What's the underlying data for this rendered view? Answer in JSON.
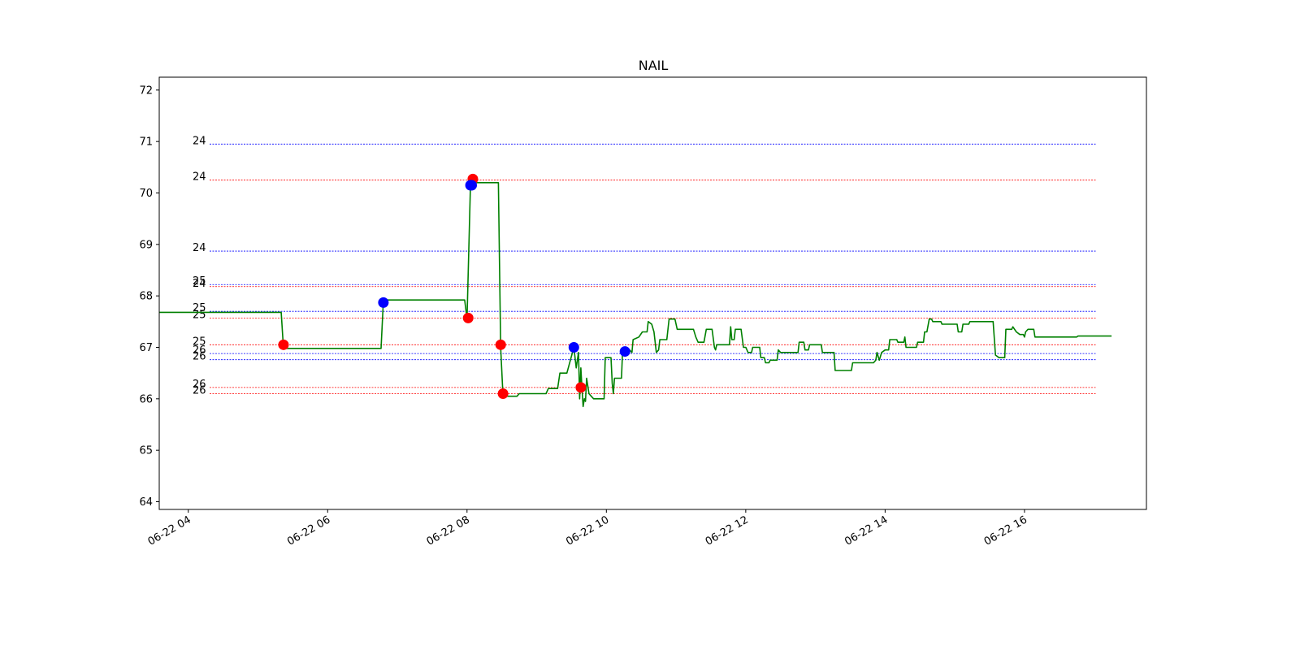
{
  "chart_data": {
    "type": "line",
    "title": "NAIL",
    "xlabel": "",
    "ylabel": "",
    "x_range": [
      "2024-06-22T03:35",
      "2024-06-22T17:45"
    ],
    "ylim": [
      63.85,
      72.25
    ],
    "y_ticks": [
      64,
      65,
      66,
      67,
      68,
      69,
      70,
      71,
      72
    ],
    "x_ticks": [
      {
        "t": "2024-06-22T04:00",
        "label": "06-22 04"
      },
      {
        "t": "2024-06-22T06:00",
        "label": "06-22 06"
      },
      {
        "t": "2024-06-22T08:00",
        "label": "06-22 08"
      },
      {
        "t": "2024-06-22T10:00",
        "label": "06-22 10"
      },
      {
        "t": "2024-06-22T12:00",
        "label": "06-22 12"
      },
      {
        "t": "2024-06-22T14:00",
        "label": "06-22 14"
      },
      {
        "t": "2024-06-22T16:00",
        "label": "06-22 16"
      }
    ],
    "grid": false,
    "colors": {
      "price": "#008000",
      "buy": "#0000ff",
      "sell": "#ff0000"
    },
    "series": [
      {
        "color": "#008000",
        "points": [
          [
            "2024-06-22T03:35",
            67.68
          ],
          [
            "2024-06-22T05:20",
            67.68
          ],
          [
            "2024-06-22T05:22",
            66.98
          ],
          [
            "2024-06-22T06:46",
            66.98
          ],
          [
            "2024-06-22T06:48",
            67.92
          ],
          [
            "2024-06-22T07:58",
            67.92
          ],
          [
            "2024-06-22T08:00",
            67.55
          ],
          [
            "2024-06-22T08:03",
            70.2
          ],
          [
            "2024-06-22T08:27",
            70.2
          ],
          [
            "2024-06-22T08:29",
            67.0
          ],
          [
            "2024-06-22T08:31",
            66.05
          ],
          [
            "2024-06-22T08:43",
            66.05
          ],
          [
            "2024-06-22T08:45",
            66.1
          ],
          [
            "2024-06-22T09:08",
            66.1
          ],
          [
            "2024-06-22T09:10",
            66.2
          ],
          [
            "2024-06-22T09:18",
            66.2
          ],
          [
            "2024-06-22T09:20",
            66.5
          ],
          [
            "2024-06-22T09:26",
            66.5
          ],
          [
            "2024-06-22T09:32",
            67.0
          ],
          [
            "2024-06-22T09:34",
            66.6
          ],
          [
            "2024-06-22T09:36",
            66.9
          ],
          [
            "2024-06-22T09:37",
            66.0
          ],
          [
            "2024-06-22T09:38",
            66.6
          ],
          [
            "2024-06-22T09:39",
            66.2
          ],
          [
            "2024-06-22T09:40",
            65.85
          ],
          [
            "2024-06-22T09:41",
            66.0
          ],
          [
            "2024-06-22T09:42",
            65.95
          ],
          [
            "2024-06-22T09:43",
            66.4
          ],
          [
            "2024-06-22T09:45",
            66.1
          ],
          [
            "2024-06-22T09:47",
            66.05
          ],
          [
            "2024-06-22T09:49",
            66.0
          ],
          [
            "2024-06-22T09:58",
            66.0
          ],
          [
            "2024-06-22T09:59",
            66.8
          ],
          [
            "2024-06-22T10:04",
            66.8
          ],
          [
            "2024-06-22T10:05",
            66.3
          ],
          [
            "2024-06-22T10:06",
            66.1
          ],
          [
            "2024-06-22T10:07",
            66.4
          ],
          [
            "2024-06-22T10:13",
            66.4
          ],
          [
            "2024-06-22T10:14",
            66.95
          ],
          [
            "2024-06-22T10:20",
            66.95
          ],
          [
            "2024-06-22T10:22",
            66.9
          ],
          [
            "2024-06-22T10:23",
            67.15
          ],
          [
            "2024-06-22T10:28",
            67.2
          ],
          [
            "2024-06-22T10:31",
            67.3
          ],
          [
            "2024-06-22T10:35",
            67.3
          ],
          [
            "2024-06-22T10:36",
            67.5
          ],
          [
            "2024-06-22T10:39",
            67.45
          ],
          [
            "2024-06-22T10:41",
            67.3
          ],
          [
            "2024-06-22T10:43",
            66.9
          ],
          [
            "2024-06-22T10:45",
            66.95
          ],
          [
            "2024-06-22T10:46",
            67.15
          ],
          [
            "2024-06-22T10:52",
            67.15
          ],
          [
            "2024-06-22T10:54",
            67.55
          ],
          [
            "2024-06-22T10:59",
            67.55
          ],
          [
            "2024-06-22T11:01",
            67.35
          ],
          [
            "2024-06-22T11:15",
            67.35
          ],
          [
            "2024-06-22T11:17",
            67.2
          ],
          [
            "2024-06-22T11:19",
            67.1
          ],
          [
            "2024-06-22T11:24",
            67.1
          ],
          [
            "2024-06-22T11:26",
            67.35
          ],
          [
            "2024-06-22T11:31",
            67.35
          ],
          [
            "2024-06-22T11:33",
            67.0
          ],
          [
            "2024-06-22T11:34",
            66.95
          ],
          [
            "2024-06-22T11:35",
            67.05
          ],
          [
            "2024-06-22T11:46",
            67.05
          ],
          [
            "2024-06-22T11:47",
            67.4
          ],
          [
            "2024-06-22T11:48",
            67.15
          ],
          [
            "2024-06-22T11:50",
            67.15
          ],
          [
            "2024-06-22T11:51",
            67.35
          ],
          [
            "2024-06-22T11:56",
            67.35
          ],
          [
            "2024-06-22T11:58",
            67.0
          ],
          [
            "2024-06-22T12:00",
            67.0
          ],
          [
            "2024-06-22T12:02",
            66.9
          ],
          [
            "2024-06-22T12:05",
            66.9
          ],
          [
            "2024-06-22T12:06",
            67.0
          ],
          [
            "2024-06-22T12:12",
            67.0
          ],
          [
            "2024-06-22T12:13",
            66.8
          ],
          [
            "2024-06-22T12:16",
            66.8
          ],
          [
            "2024-06-22T12:17",
            66.7
          ],
          [
            "2024-06-22T12:20",
            66.7
          ],
          [
            "2024-06-22T12:21",
            66.75
          ],
          [
            "2024-06-22T12:27",
            66.75
          ],
          [
            "2024-06-22T12:28",
            66.95
          ],
          [
            "2024-06-22T12:30",
            66.9
          ],
          [
            "2024-06-22T12:45",
            66.9
          ],
          [
            "2024-06-22T12:46",
            67.1
          ],
          [
            "2024-06-22T12:50",
            67.1
          ],
          [
            "2024-06-22T12:51",
            66.95
          ],
          [
            "2024-06-22T12:54",
            66.95
          ],
          [
            "2024-06-22T12:55",
            67.05
          ],
          [
            "2024-06-22T13:05",
            67.05
          ],
          [
            "2024-06-22T13:06",
            66.9
          ],
          [
            "2024-06-22T13:16",
            66.9
          ],
          [
            "2024-06-22T13:17",
            66.55
          ],
          [
            "2024-06-22T13:31",
            66.55
          ],
          [
            "2024-06-22T13:32",
            66.7
          ],
          [
            "2024-06-22T13:50",
            66.7
          ],
          [
            "2024-06-22T13:52",
            66.75
          ],
          [
            "2024-06-22T13:53",
            66.9
          ],
          [
            "2024-06-22T13:55",
            66.75
          ],
          [
            "2024-06-22T13:57",
            66.9
          ],
          [
            "2024-06-22T14:00",
            66.95
          ],
          [
            "2024-06-22T14:03",
            66.95
          ],
          [
            "2024-06-22T14:04",
            67.15
          ],
          [
            "2024-06-22T14:10",
            67.15
          ],
          [
            "2024-06-22T14:11",
            67.1
          ],
          [
            "2024-06-22T14:16",
            67.1
          ],
          [
            "2024-06-22T14:17",
            67.2
          ],
          [
            "2024-06-22T14:18",
            67.0
          ],
          [
            "2024-06-22T14:27",
            67.0
          ],
          [
            "2024-06-22T14:28",
            67.1
          ],
          [
            "2024-06-22T14:33",
            67.1
          ],
          [
            "2024-06-22T14:34",
            67.3
          ],
          [
            "2024-06-22T14:36",
            67.3
          ],
          [
            "2024-06-22T14:38",
            67.55
          ],
          [
            "2024-06-22T14:40",
            67.55
          ],
          [
            "2024-06-22T14:41",
            67.5
          ],
          [
            "2024-06-22T14:48",
            67.5
          ],
          [
            "2024-06-22T14:49",
            67.45
          ],
          [
            "2024-06-22T15:02",
            67.45
          ],
          [
            "2024-06-22T15:03",
            67.3
          ],
          [
            "2024-06-22T15:06",
            67.3
          ],
          [
            "2024-06-22T15:07",
            67.45
          ],
          [
            "2024-06-22T15:12",
            67.45
          ],
          [
            "2024-06-22T15:13",
            67.5
          ],
          [
            "2024-06-22T15:33",
            67.5
          ],
          [
            "2024-06-22T15:35",
            66.85
          ],
          [
            "2024-06-22T15:38",
            66.8
          ],
          [
            "2024-06-22T15:43",
            66.8
          ],
          [
            "2024-06-22T15:44",
            67.35
          ],
          [
            "2024-06-22T15:49",
            67.35
          ],
          [
            "2024-06-22T15:50",
            67.4
          ],
          [
            "2024-06-22T15:53",
            67.3
          ],
          [
            "2024-06-22T15:56",
            67.25
          ],
          [
            "2024-06-22T15:59",
            67.25
          ],
          [
            "2024-06-22T16:00",
            67.2
          ],
          [
            "2024-06-22T16:01",
            67.3
          ],
          [
            "2024-06-22T16:03",
            67.35
          ],
          [
            "2024-06-22T16:08",
            67.35
          ],
          [
            "2024-06-22T16:09",
            67.2
          ],
          [
            "2024-06-22T16:45",
            67.2
          ],
          [
            "2024-06-22T16:46",
            67.22
          ],
          [
            "2024-06-22T17:15",
            67.22
          ]
        ]
      }
    ],
    "buy_points": [
      [
        "2024-06-22T06:48",
        67.87
      ],
      [
        "2024-06-22T08:03",
        70.15
      ],
      [
        "2024-06-22T08:04",
        70.15
      ],
      [
        "2024-06-22T09:32",
        67.0
      ],
      [
        "2024-06-22T10:16",
        66.92
      ]
    ],
    "sell_points": [
      [
        "2024-06-22T05:22",
        67.05
      ],
      [
        "2024-06-22T08:05",
        70.27
      ],
      [
        "2024-06-22T08:01",
        67.57
      ],
      [
        "2024-06-22T08:29",
        67.05
      ],
      [
        "2024-06-22T08:31",
        66.1
      ],
      [
        "2024-06-22T09:38",
        66.22
      ]
    ],
    "hlines": [
      {
        "y": 70.95,
        "color": "#0000ff",
        "label": "24"
      },
      {
        "y": 70.25,
        "color": "#ff0000",
        "label": "24"
      },
      {
        "y": 68.87,
        "color": "#0000ff",
        "label": "24"
      },
      {
        "y": 68.22,
        "color": "#0000ff",
        "label": "25"
      },
      {
        "y": 68.18,
        "color": "#ff0000",
        "label": "24"
      },
      {
        "y": 67.7,
        "color": "#0000ff",
        "label": "25"
      },
      {
        "y": 67.57,
        "color": "#ff0000",
        "label": "25"
      },
      {
        "y": 67.05,
        "color": "#ff0000",
        "label": "25"
      },
      {
        "y": 66.88,
        "color": "#0000ff",
        "label": "26"
      },
      {
        "y": 66.76,
        "color": "#0000ff",
        "label": "26"
      },
      {
        "y": 66.22,
        "color": "#ff0000",
        "label": "26"
      },
      {
        "y": 66.1,
        "color": "#ff0000",
        "label": "26"
      }
    ]
  }
}
